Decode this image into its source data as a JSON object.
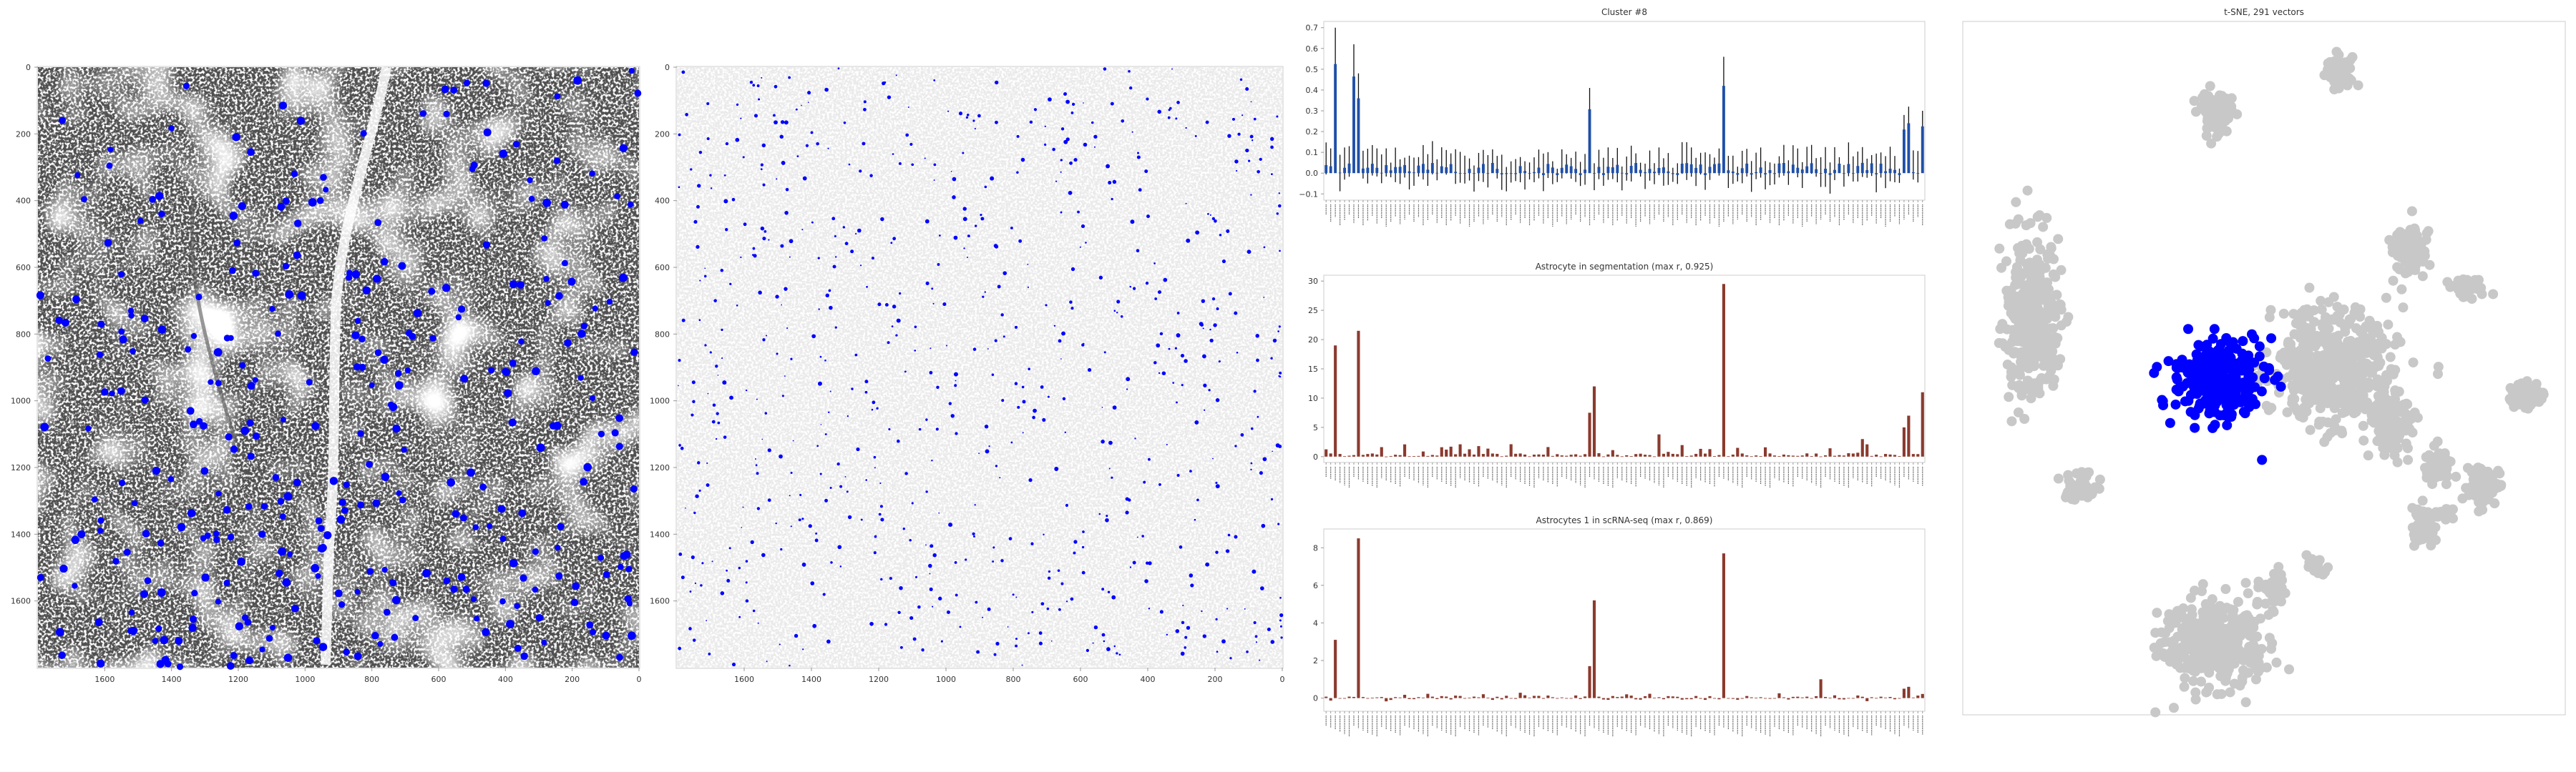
{
  "colors": {
    "point_blue": "#0000ff",
    "bar_blue": "#1f4fa8",
    "bar_red": "#8b3a2e",
    "gray_points": "#c8c8c8",
    "axes_text": "#333333",
    "frame": "#cccccc"
  },
  "chart_data": [
    {
      "id": "tissue-image-1",
      "type": "scatter",
      "title": "",
      "background": "grayscale-tissue-image",
      "x_ticks": [
        "1600",
        "1400",
        "1200",
        "1000",
        "800",
        "600",
        "400",
        "200",
        "0"
      ],
      "y_ticks": [
        "0",
        "200",
        "400",
        "600",
        "800",
        "1000",
        "1200",
        "1400",
        "1600"
      ],
      "xlim": [
        1800,
        0
      ],
      "ylim": [
        0,
        1800
      ],
      "y_inverted": true,
      "series": [
        {
          "color": "blue",
          "marker": "filled-circle",
          "approx_count": 330,
          "spatial_distribution": "scattered across the tissue, denser toward the bottom"
        }
      ]
    },
    {
      "id": "segmentation-image",
      "type": "scatter",
      "title": "",
      "background": "light-gray-segmentation",
      "x_ticks": [
        "1600",
        "1400",
        "1200",
        "1000",
        "800",
        "600",
        "400",
        "200",
        "0"
      ],
      "y_ticks": [
        "0",
        "200",
        "400",
        "600",
        "800",
        "1000",
        "1200",
        "1400",
        "1600"
      ],
      "xlim": [
        1800,
        0
      ],
      "ylim": [
        0,
        1800
      ],
      "y_inverted": true,
      "series": [
        {
          "color": "blue",
          "marker": "small-blob",
          "approx_count": 700,
          "spatial_distribution": "scattered across the tissue"
        }
      ]
    },
    {
      "id": "cluster-bars",
      "type": "bar",
      "title": "Cluster #8",
      "yticks": [
        "−0.1",
        "0.0",
        "0.1",
        "0.2",
        "0.3",
        "0.4",
        "0.5",
        "0.6",
        "0.7"
      ],
      "ylim": [
        -0.13,
        0.73
      ],
      "bar_count": 130,
      "peaks": [
        {
          "index": 2,
          "value": 0.7
        },
        {
          "index": 6,
          "value": 0.62
        },
        {
          "index": 7,
          "value": 0.48
        },
        {
          "index": 57,
          "value": 0.41
        },
        {
          "index": 86,
          "value": 0.56
        },
        {
          "index": 125,
          "value": 0.28
        },
        {
          "index": 126,
          "value": 0.32
        },
        {
          "index": 129,
          "value": 0.3
        }
      ],
      "visible_tick_labels": [
        "Aldh1l1",
        "Aqp4",
        "Apoe",
        "Clu",
        "Cst3",
        "Gfap",
        "Glul",
        "Mbp",
        "Plp1",
        "Sparcl1",
        "Slc1a2",
        "Slc1a3",
        "Ttyh1"
      ]
    },
    {
      "id": "segmentation-bars",
      "type": "bar",
      "title": "Astrocyte in segmentation (max r, 0.925)",
      "yticks": [
        "0",
        "5",
        "10",
        "15",
        "20",
        "25",
        "30"
      ],
      "ylim": [
        -1,
        31
      ],
      "bar_count": 130,
      "peaks": [
        {
          "index": 2,
          "value": 19
        },
        {
          "index": 7,
          "value": 21.5
        },
        {
          "index": 57,
          "value": 7.5
        },
        {
          "index": 58,
          "value": 12
        },
        {
          "index": 86,
          "value": 29.5
        },
        {
          "index": 72,
          "value": 3.8
        },
        {
          "index": 116,
          "value": 3
        },
        {
          "index": 125,
          "value": 5
        },
        {
          "index": 126,
          "value": 7
        },
        {
          "index": 129,
          "value": 11
        }
      ]
    },
    {
      "id": "scrnaseq-bars",
      "type": "bar",
      "title": "Astrocytes 1 in scRNA-seq (max r, 0.869)",
      "yticks": [
        "0",
        "2",
        "4",
        "6",
        "8"
      ],
      "ylim": [
        -0.7,
        9
      ],
      "bar_count": 130,
      "peaks": [
        {
          "index": 2,
          "value": 3.1
        },
        {
          "index": 7,
          "value": 8.5
        },
        {
          "index": 57,
          "value": 1.7
        },
        {
          "index": 58,
          "value": 5.2
        },
        {
          "index": 86,
          "value": 7.7
        },
        {
          "index": 107,
          "value": 1
        },
        {
          "index": 125,
          "value": 0.5
        },
        {
          "index": 126,
          "value": 0.6
        }
      ]
    },
    {
      "id": "tsne-scatter",
      "type": "scatter",
      "title": "t-SNE, 291 vectors",
      "axes_visible": false,
      "series": [
        {
          "color": "gray",
          "approx_count": 2200,
          "role": "all vectors"
        },
        {
          "color": "blue",
          "approx_count": 291,
          "role": "selected cluster"
        }
      ]
    }
  ]
}
